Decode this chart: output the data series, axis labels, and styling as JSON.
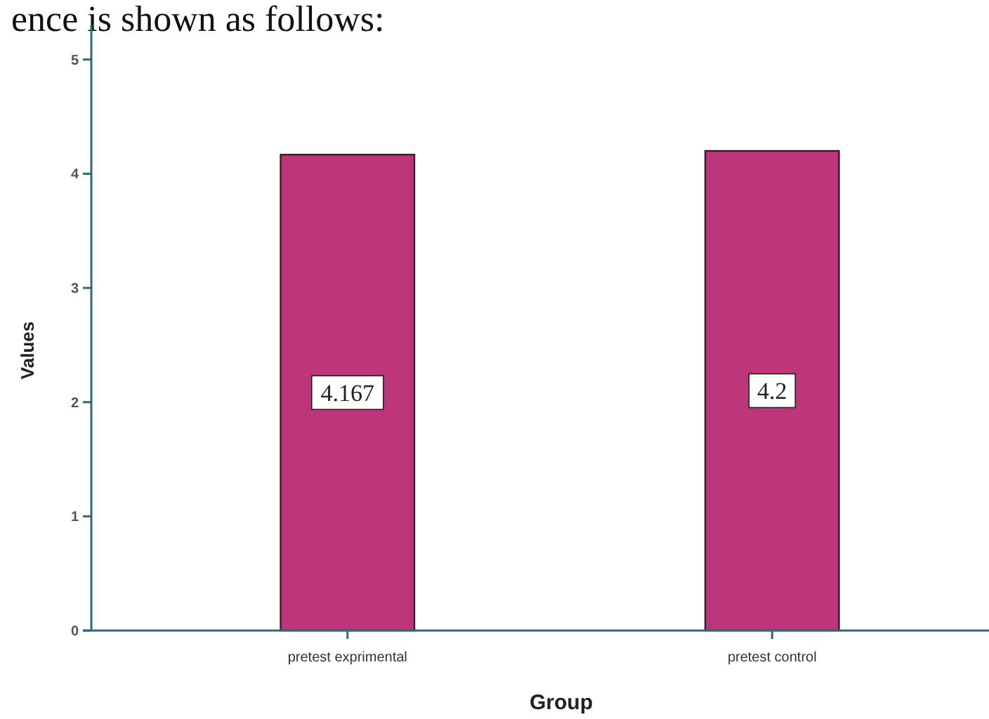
{
  "chart_data": {
    "type": "bar",
    "xlabel": "Group",
    "ylabel": "Values",
    "categories": [
      "pretest exprimental",
      "pretest control"
    ],
    "values": [
      4.167,
      4.2
    ],
    "color": "#bc3679",
    "ylim": [
      0,
      5.3
    ],
    "yticks": [
      0,
      1,
      2,
      3,
      4,
      5
    ],
    "data_labels": true,
    "annotations": [
      "ence is shown as follows:"
    ]
  }
}
